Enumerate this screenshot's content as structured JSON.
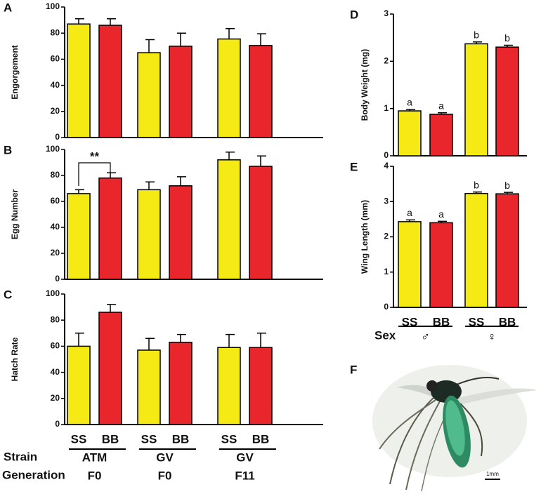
{
  "chart_data": [
    {
      "type": "bar",
      "panel": "A",
      "ylabel": "Engorgement",
      "categories": [
        null,
        null,
        null,
        null,
        null,
        null
      ],
      "values": [
        87,
        86,
        65,
        70,
        75.5,
        70.5
      ],
      "errors": [
        4,
        5,
        10,
        10,
        8,
        9
      ],
      "colors": [
        "#f5ea14",
        "#e8262b",
        "#f5ea14",
        "#e8262b",
        "#f5ea14",
        "#e8262b"
      ],
      "ylim": [
        0,
        100
      ],
      "yticks": [
        0,
        20,
        40,
        60,
        80,
        100
      ]
    },
    {
      "type": "bar",
      "panel": "B",
      "ylabel": "Egg Number",
      "categories": [
        null,
        null,
        null,
        null,
        null,
        null
      ],
      "values": [
        66,
        78,
        69,
        72,
        92,
        87
      ],
      "errors": [
        3,
        4,
        6,
        7,
        6,
        8
      ],
      "colors": [
        "#f5ea14",
        "#e8262b",
        "#f5ea14",
        "#e8262b",
        "#f5ea14",
        "#e8262b"
      ],
      "ylim": [
        0,
        100
      ],
      "yticks": [
        0,
        20,
        40,
        60,
        80,
        100
      ],
      "annotation": "**"
    },
    {
      "type": "bar",
      "panel": "C",
      "ylabel": "Hatch Rate",
      "categories": [
        "SS",
        "BB",
        "SS",
        "BB",
        "SS",
        "BB"
      ],
      "values": [
        60,
        86,
        57,
        63,
        59,
        59
      ],
      "errors": [
        10,
        6,
        9,
        6,
        10,
        11
      ],
      "colors": [
        "#f5ea14",
        "#e8262b",
        "#f5ea14",
        "#e8262b",
        "#f5ea14",
        "#e8262b"
      ],
      "ylim": [
        0,
        100
      ],
      "yticks": [
        0,
        20,
        40,
        60,
        80,
        100
      ],
      "row_labels": {
        "strain": "Strain",
        "generation": "Generation"
      },
      "groups": [
        {
          "strain": "ATM",
          "generation": "F0"
        },
        {
          "strain": "GV",
          "generation": "F0"
        },
        {
          "strain": "GV",
          "generation": "F11"
        }
      ]
    },
    {
      "type": "bar",
      "panel": "D",
      "ylabel": "Body Weight (mg)",
      "categories": [
        null,
        null,
        null,
        null
      ],
      "values": [
        0.95,
        0.88,
        2.37,
        2.3
      ],
      "errors": [
        0.03,
        0.03,
        0.04,
        0.04
      ],
      "letters": [
        "a",
        "a",
        "b",
        "b"
      ],
      "colors": [
        "#f5ea14",
        "#e8262b",
        "#f5ea14",
        "#e8262b"
      ],
      "ylim": [
        0,
        3
      ],
      "yticks": [
        0,
        1,
        2,
        3
      ]
    },
    {
      "type": "bar",
      "panel": "E",
      "ylabel": "Wing Length (mm)",
      "categories": [
        "SS",
        "BB",
        "SS",
        "BB"
      ],
      "values": [
        2.43,
        2.4,
        3.23,
        3.22
      ],
      "errors": [
        0.05,
        0.04,
        0.04,
        0.04
      ],
      "letters": [
        "a",
        "a",
        "b",
        "b"
      ],
      "colors": [
        "#f5ea14",
        "#e8262b",
        "#f5ea14",
        "#e8262b"
      ],
      "ylim": [
        0,
        4
      ],
      "yticks": [
        0,
        1,
        2,
        3,
        4
      ],
      "group_title": "Sex",
      "groups": [
        "♂",
        "♀"
      ]
    }
  ],
  "image": {
    "panel": "F",
    "scale_bar": "1mm"
  }
}
